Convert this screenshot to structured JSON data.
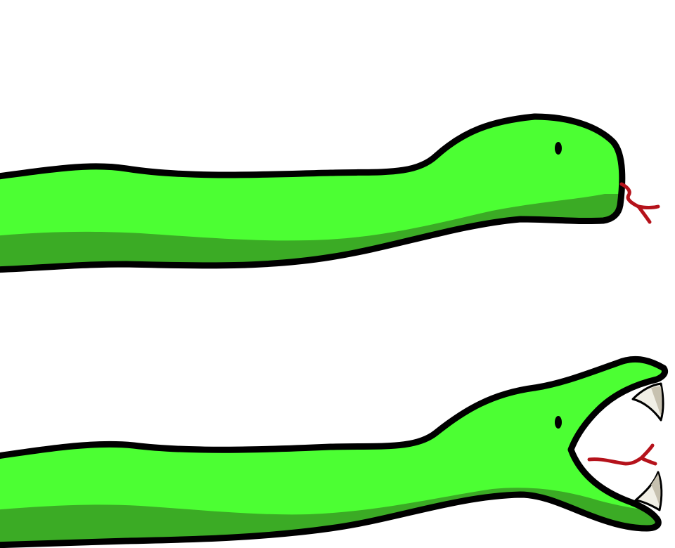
{
  "sprites": [
    {
      "name": "snake-idle",
      "pose": "mouth-closed",
      "tongue": "flicking"
    },
    {
      "name": "snake-attack",
      "pose": "mouth-open",
      "fangs": 2,
      "tongue": "extended"
    }
  ],
  "colors": {
    "background": "#ffffff",
    "body_light": "#4cff33",
    "body_shadow": "#3bab25",
    "outline": "#000000",
    "tongue": "#b5121b",
    "fang": "#f1efe6",
    "fang_shade": "#c7c1b0"
  }
}
